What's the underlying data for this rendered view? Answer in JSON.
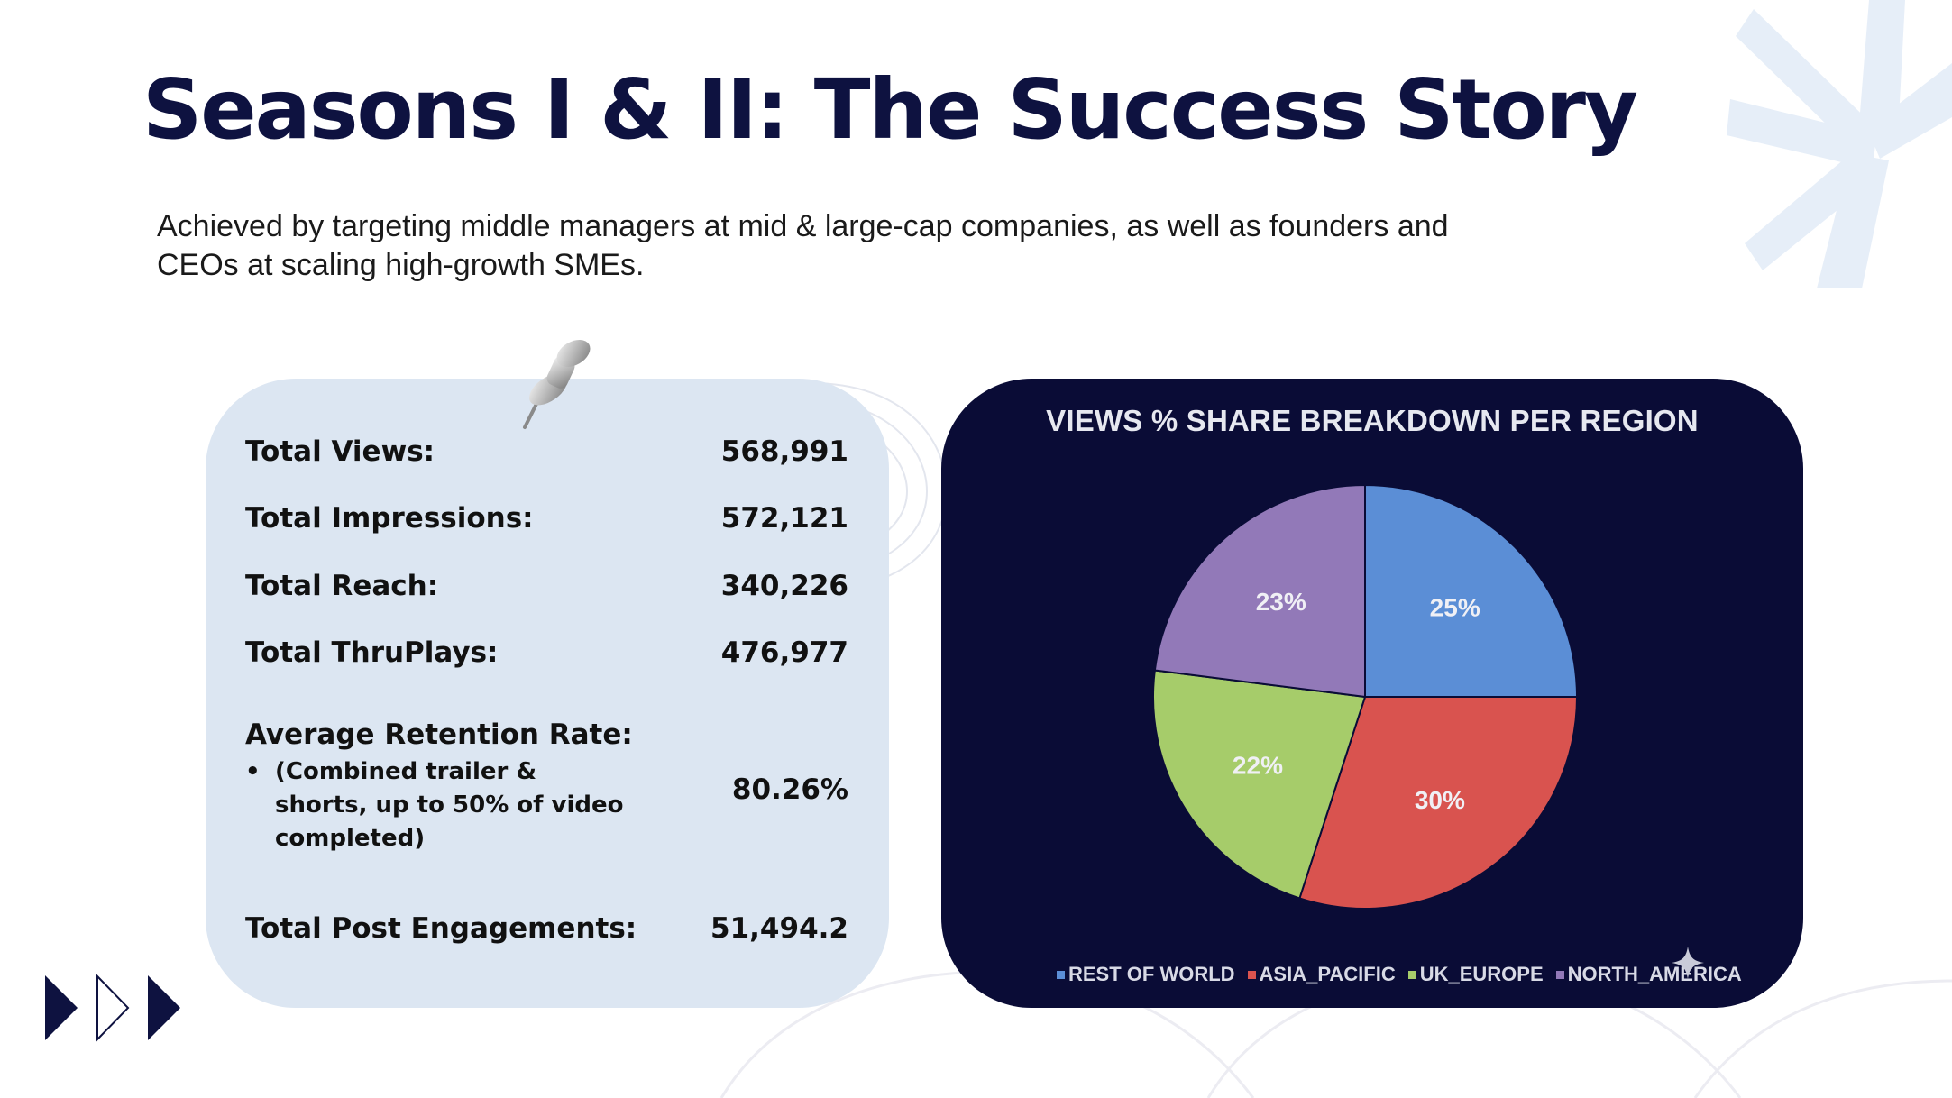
{
  "slide": {
    "title": "Seasons I & II: The Success Story",
    "subtitle": "Achieved by targeting middle managers at mid & large-cap companies, as well as founders and CEOs at scaling high-growth SMEs."
  },
  "stats": {
    "rows": [
      {
        "label": "Total Views:",
        "value": "568,991"
      },
      {
        "label": "Total Impressions:",
        "value": "572,121"
      },
      {
        "label": "Total Reach:",
        "value": "340,226"
      },
      {
        "label": "Total ThruPlays:",
        "value": "476,977"
      }
    ],
    "retention": {
      "label": "Average Retention Rate:",
      "bullet": "•",
      "note": "(Combined trailer & shorts, up to 50% of video completed)",
      "value": "80.26%"
    },
    "engagements": {
      "label": "Total Post Engagements:",
      "value": "51,494.2"
    }
  },
  "colors": {
    "title": "#0e1240",
    "stats_card": "#dce6f2",
    "chart_card": "#0a0c36"
  },
  "icons": [
    "pushpin-icon",
    "sparkle-icon",
    "triangle-arrow-icon"
  ],
  "chart_data": {
    "type": "pie",
    "title": "VIEWS % SHARE BREAKDOWN PER REGION",
    "categories": [
      "REST OF WORLD",
      "ASIA_PACIFIC",
      "UK_EUROPE",
      "NORTH_AMERICA"
    ],
    "values": [
      25,
      30,
      22,
      23
    ],
    "labels": [
      "25%",
      "30%",
      "22%",
      "23%"
    ],
    "colors": [
      "#5b8ed6",
      "#d9534f",
      "#a6cc6a",
      "#9279b8"
    ],
    "legend": "bottom"
  }
}
